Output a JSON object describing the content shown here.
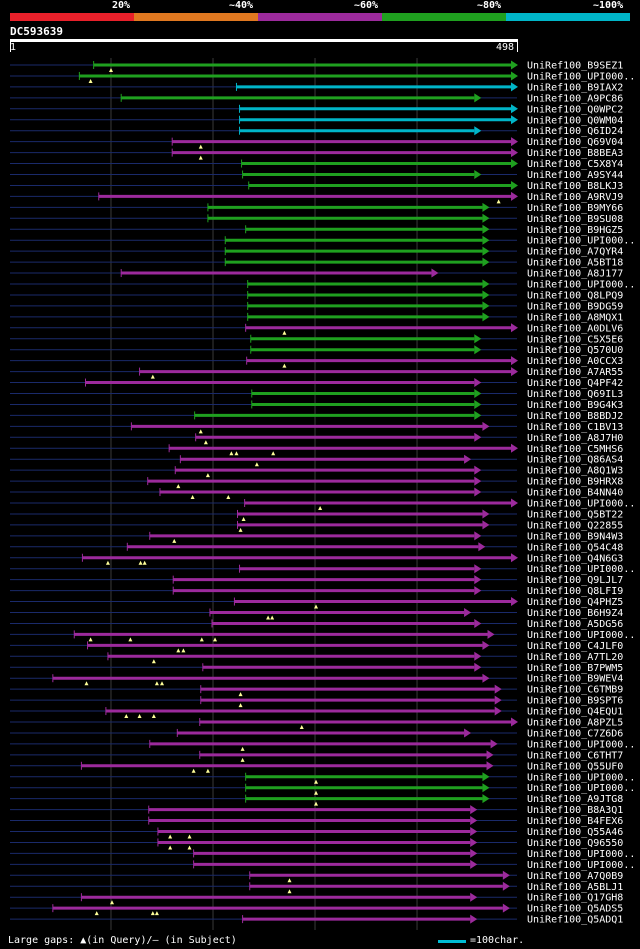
{
  "query_id": "DC593639",
  "ruler": {
    "start": "1",
    "end": "498"
  },
  "legend": {
    "labels": [
      "20%",
      "~40%",
      "~60%",
      "~80%",
      "~100%"
    ],
    "colors": [
      "#e8202a",
      "#e07820",
      "#9c2a9c",
      "#1fa01f",
      "#00b5c8"
    ]
  },
  "footer": {
    "text": "Large gaps: ▲(in Query)/– (in Subject)",
    "scale_text": "=100char."
  },
  "hits": [
    {
      "label": "UniRef100_B9SEZ1",
      "start": 83,
      "end": 498,
      "color": "#1fa01f",
      "gaps": [
        100
      ]
    },
    {
      "label": "UniRef100_UPI000..",
      "start": 69,
      "end": 498,
      "color": "#1fa01f",
      "gaps": [
        80
      ]
    },
    {
      "label": "UniRef100_B9IAX2",
      "start": 223,
      "end": 498,
      "color": "#00b5c8",
      "gaps": []
    },
    {
      "label": "UniRef100_A9PC86",
      "start": 110,
      "end": 462,
      "color": "#1fa01f",
      "gaps": []
    },
    {
      "label": "UniRef100_Q0WPC2",
      "start": 226,
      "end": 498,
      "color": "#00b5c8",
      "gaps": []
    },
    {
      "label": "UniRef100_Q0WM04",
      "start": 226,
      "end": 498,
      "color": "#00b5c8",
      "gaps": []
    },
    {
      "label": "UniRef100_Q6ID24",
      "start": 226,
      "end": 462,
      "color": "#00b5c8",
      "gaps": []
    },
    {
      "label": "UniRef100_Q69V04",
      "start": 160,
      "end": 498,
      "color": "#9c2a9c",
      "gaps": [
        188
      ]
    },
    {
      "label": "UniRef100_B8BEA3",
      "start": 160,
      "end": 498,
      "color": "#9c2a9c",
      "gaps": [
        188
      ]
    },
    {
      "label": "UniRef100_C5X8Y4",
      "start": 228,
      "end": 498,
      "color": "#1fa01f",
      "gaps": []
    },
    {
      "label": "UniRef100_A9SY44",
      "start": 229,
      "end": 462,
      "color": "#1fa01f",
      "gaps": []
    },
    {
      "label": "UniRef100_B8LKJ3",
      "start": 235,
      "end": 498,
      "color": "#1fa01f",
      "gaps": []
    },
    {
      "label": "UniRef100_A9RVJ9",
      "start": 88,
      "end": 498,
      "color": "#9c2a9c",
      "gaps": [
        480
      ]
    },
    {
      "label": "UniRef100_B9MY66",
      "start": 195,
      "end": 470,
      "color": "#1fa01f",
      "gaps": []
    },
    {
      "label": "UniRef100_B9SU08",
      "start": 195,
      "end": 470,
      "color": "#1fa01f",
      "gaps": []
    },
    {
      "label": "UniRef100_B9HGZ5",
      "start": 232,
      "end": 470,
      "color": "#1fa01f",
      "gaps": []
    },
    {
      "label": "UniRef100_UPI000..",
      "start": 212,
      "end": 470,
      "color": "#1fa01f",
      "gaps": []
    },
    {
      "label": "UniRef100_A7QYR4",
      "start": 212,
      "end": 470,
      "color": "#1fa01f",
      "gaps": []
    },
    {
      "label": "UniRef100_A5BT18",
      "start": 212,
      "end": 470,
      "color": "#1fa01f",
      "gaps": []
    },
    {
      "label": "UniRef100_A8J177",
      "start": 110,
      "end": 420,
      "color": "#9c2a9c",
      "gaps": []
    },
    {
      "label": "UniRef100_UPI000..",
      "start": 234,
      "end": 470,
      "color": "#1fa01f",
      "gaps": []
    },
    {
      "label": "UniRef100_Q8LPQ9",
      "start": 234,
      "end": 470,
      "color": "#1fa01f",
      "gaps": []
    },
    {
      "label": "UniRef100_B9DG59",
      "start": 234,
      "end": 470,
      "color": "#1fa01f",
      "gaps": []
    },
    {
      "label": "UniRef100_A8MQX1",
      "start": 234,
      "end": 470,
      "color": "#1fa01f",
      "gaps": []
    },
    {
      "label": "UniRef100_A0DLV6",
      "start": 232,
      "end": 498,
      "color": "#9c2a9c",
      "gaps": [
        270
      ]
    },
    {
      "label": "UniRef100_C5X5E6",
      "start": 237,
      "end": 462,
      "color": "#1fa01f",
      "gaps": []
    },
    {
      "label": "UniRef100_Q570U0",
      "start": 237,
      "end": 462,
      "color": "#1fa01f",
      "gaps": []
    },
    {
      "label": "UniRef100_A0CCX3",
      "start": 233,
      "end": 498,
      "color": "#9c2a9c",
      "gaps": [
        270
      ]
    },
    {
      "label": "UniRef100_A7AR55",
      "start": 128,
      "end": 498,
      "color": "#9c2a9c",
      "gaps": [
        141
      ]
    },
    {
      "label": "UniRef100_Q4PF42",
      "start": 75,
      "end": 462,
      "color": "#9c2a9c",
      "gaps": []
    },
    {
      "label": "UniRef100_Q69IL3",
      "start": 238,
      "end": 462,
      "color": "#1fa01f",
      "gaps": []
    },
    {
      "label": "UniRef100_B9G4K3",
      "start": 238,
      "end": 462,
      "color": "#1fa01f",
      "gaps": []
    },
    {
      "label": "UniRef100_B8BDJ2",
      "start": 182,
      "end": 462,
      "color": "#1fa01f",
      "gaps": []
    },
    {
      "label": "UniRef100_C1BV13",
      "start": 120,
      "end": 470,
      "color": "#9c2a9c",
      "gaps": [
        188
      ]
    },
    {
      "label": "UniRef100_A8J7H0",
      "start": 183,
      "end": 462,
      "color": "#9c2a9c",
      "gaps": [
        193
      ]
    },
    {
      "label": "UniRef100_C5MHS6",
      "start": 157,
      "end": 498,
      "color": "#9c2a9c",
      "gaps": [
        218,
        223,
        259
      ]
    },
    {
      "label": "UniRef100_Q86AS4",
      "start": 168,
      "end": 452,
      "color": "#9c2a9c",
      "gaps": [
        243
      ]
    },
    {
      "label": "UniRef100_A8Q1W3",
      "start": 163,
      "end": 462,
      "color": "#9c2a9c",
      "gaps": [
        195
      ]
    },
    {
      "label": "UniRef100_B9HRX8",
      "start": 136,
      "end": 462,
      "color": "#9c2a9c",
      "gaps": [
        166
      ]
    },
    {
      "label": "UniRef100_B4NN40",
      "start": 148,
      "end": 462,
      "color": "#9c2a9c",
      "gaps": [
        180,
        215
      ]
    },
    {
      "label": "UniRef100_UPI000..",
      "start": 231,
      "end": 498,
      "color": "#9c2a9c",
      "gaps": [
        305
      ]
    },
    {
      "label": "UniRef100_Q5BT22",
      "start": 224,
      "end": 470,
      "color": "#9c2a9c",
      "gaps": [
        230
      ]
    },
    {
      "label": "UniRef100_Q22855",
      "start": 224,
      "end": 470,
      "color": "#9c2a9c",
      "gaps": [
        227
      ]
    },
    {
      "label": "UniRef100_B9N4W3",
      "start": 138,
      "end": 462,
      "color": "#9c2a9c",
      "gaps": [
        162
      ]
    },
    {
      "label": "UniRef100_Q54C48",
      "start": 116,
      "end": 466,
      "color": "#9c2a9c",
      "gaps": []
    },
    {
      "label": "UniRef100_Q4N6G3",
      "start": 72,
      "end": 498,
      "color": "#9c2a9c",
      "gaps": [
        97,
        129,
        133
      ]
    },
    {
      "label": "UniRef100_UPI000..",
      "start": 226,
      "end": 462,
      "color": "#9c2a9c",
      "gaps": []
    },
    {
      "label": "UniRef100_Q9LJL7",
      "start": 161,
      "end": 462,
      "color": "#9c2a9c",
      "gaps": []
    },
    {
      "label": "UniRef100_Q8LFI9",
      "start": 161,
      "end": 462,
      "color": "#9c2a9c",
      "gaps": []
    },
    {
      "label": "UniRef100_Q4PHZ5",
      "start": 221,
      "end": 498,
      "color": "#9c2a9c",
      "gaps": [
        301
      ]
    },
    {
      "label": "UniRef100_B6H9Z4",
      "start": 197,
      "end": 452,
      "color": "#9c2a9c",
      "gaps": [
        254,
        258
      ]
    },
    {
      "label": "UniRef100_A5DG56",
      "start": 199,
      "end": 462,
      "color": "#9c2a9c",
      "gaps": []
    },
    {
      "label": "UniRef100_UPI000..",
      "start": 64,
      "end": 475,
      "color": "#9c2a9c",
      "gaps": [
        80,
        119,
        189,
        202
      ]
    },
    {
      "label": "UniRef100_C4JLF0",
      "start": 77,
      "end": 470,
      "color": "#9c2a9c",
      "gaps": [
        166,
        171
      ]
    },
    {
      "label": "UniRef100_A7TL20",
      "start": 97,
      "end": 462,
      "color": "#9c2a9c",
      "gaps": [
        142
      ]
    },
    {
      "label": "UniRef100_B7PWM5",
      "start": 190,
      "end": 462,
      "color": "#9c2a9c",
      "gaps": []
    },
    {
      "label": "UniRef100_B9WEV4",
      "start": 43,
      "end": 470,
      "color": "#9c2a9c",
      "gaps": [
        76,
        145,
        150
      ]
    },
    {
      "label": "UniRef100_C6TMB9",
      "start": 188,
      "end": 482,
      "color": "#9c2a9c",
      "gaps": [
        227
      ]
    },
    {
      "label": "UniRef100_B9SPT6",
      "start": 188,
      "end": 482,
      "color": "#9c2a9c",
      "gaps": [
        227
      ]
    },
    {
      "label": "UniRef100_Q4EQU1",
      "start": 95,
      "end": 482,
      "color": "#9c2a9c",
      "gaps": [
        115,
        128,
        142
      ]
    },
    {
      "label": "UniRef100_A8PZL5",
      "start": 187,
      "end": 498,
      "color": "#9c2a9c",
      "gaps": [
        287
      ]
    },
    {
      "label": "UniRef100_C7Z6D6",
      "start": 165,
      "end": 452,
      "color": "#9c2a9c",
      "gaps": []
    },
    {
      "label": "UniRef100_UPI000..",
      "start": 138,
      "end": 478,
      "color": "#9c2a9c",
      "gaps": [
        229
      ]
    },
    {
      "label": "UniRef100_C6THT7",
      "start": 187,
      "end": 474,
      "color": "#9c2a9c",
      "gaps": [
        229
      ]
    },
    {
      "label": "UniRef100_Q55UF0",
      "start": 71,
      "end": 474,
      "color": "#9c2a9c",
      "gaps": [
        181,
        195
      ]
    },
    {
      "label": "UniRef100_UPI000..",
      "start": 232,
      "end": 470,
      "color": "#1fa01f",
      "gaps": [
        301
      ]
    },
    {
      "label": "UniRef100_UPI000..",
      "start": 232,
      "end": 470,
      "color": "#1fa01f",
      "gaps": [
        301
      ]
    },
    {
      "label": "UniRef100_A9JTG8",
      "start": 232,
      "end": 470,
      "color": "#1fa01f",
      "gaps": [
        301
      ]
    },
    {
      "label": "UniRef100_B8A3Q1",
      "start": 137,
      "end": 458,
      "color": "#9c2a9c",
      "gaps": []
    },
    {
      "label": "UniRef100_B4FEX6",
      "start": 137,
      "end": 458,
      "color": "#9c2a9c",
      "gaps": []
    },
    {
      "label": "UniRef100_Q55A46",
      "start": 146,
      "end": 458,
      "color": "#9c2a9c",
      "gaps": [
        158,
        177
      ]
    },
    {
      "label": "UniRef100_Q96550",
      "start": 146,
      "end": 458,
      "color": "#9c2a9c",
      "gaps": [
        158,
        177
      ]
    },
    {
      "label": "UniRef100_UPI000..",
      "start": 181,
      "end": 458,
      "color": "#9c2a9c",
      "gaps": []
    },
    {
      "label": "UniRef100_UPI000..",
      "start": 181,
      "end": 458,
      "color": "#9c2a9c",
      "gaps": []
    },
    {
      "label": "UniRef100_A7Q0B9",
      "start": 236,
      "end": 490,
      "color": "#9c2a9c",
      "gaps": [
        275
      ]
    },
    {
      "label": "UniRef100_A5BLJ1",
      "start": 236,
      "end": 490,
      "color": "#9c2a9c",
      "gaps": [
        275
      ]
    },
    {
      "label": "UniRef100_Q17GH8",
      "start": 71,
      "end": 458,
      "color": "#9c2a9c",
      "gaps": [
        101
      ]
    },
    {
      "label": "UniRef100_Q5ADS5",
      "start": 43,
      "end": 490,
      "color": "#9c2a9c",
      "gaps": [
        86,
        141,
        145
      ]
    },
    {
      "label": "UniRef100_Q5ADQ1",
      "start": 229,
      "end": 458,
      "color": "#9c2a9c",
      "gaps": []
    }
  ]
}
